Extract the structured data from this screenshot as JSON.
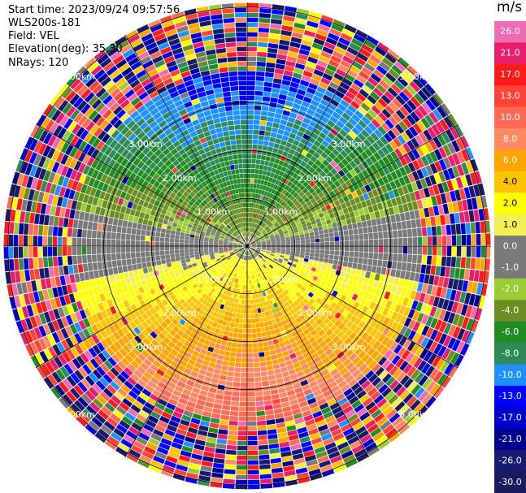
{
  "header": {
    "start_time": "Start time: 2023/09/24 09:57:56",
    "site": "WLS200s-181",
    "field": "Field: VEL",
    "elevation": "Elevation(deg): 35.30",
    "nrays": "NRays: 120"
  },
  "chart_data": {
    "type": "ppi-polar",
    "field": "VEL",
    "units": "m/s",
    "nrays": 120,
    "range_rings_km": [
      1,
      2,
      3,
      5
    ],
    "ring_labels": [
      "1.00km",
      "2.00km",
      "3.00km",
      "5.00km"
    ],
    "max_range_km": 5.1,
    "colorbar": {
      "label": "m/s",
      "ticks": [
        "26.0",
        "21.0",
        "17.0",
        "13.0",
        "10.0",
        "8.0",
        "6.0",
        "4.0",
        "2.0",
        "1.0",
        "0.0",
        "-1.0",
        "-2.0",
        "-4.0",
        "-6.0",
        "-8.0",
        "-10.0",
        "-13.0",
        "-17.0",
        "-21.0",
        "-26.0",
        "-30.0"
      ],
      "colors": [
        "#f06bb4",
        "#e81e6a",
        "#ff1a1a",
        "#ff4436",
        "#ff6a55",
        "#ff8a62",
        "#ffa400",
        "#ffc400",
        "#ffff00",
        "#f0f052",
        "#7a7a7a",
        "#7a7a7a",
        "#9acd32",
        "#6b8e23",
        "#228b22",
        "#2e8b57",
        "#1e90ff",
        "#0000ff",
        "#0000cd",
        "#00008b",
        "#191970",
        "#1a1a5e"
      ]
    }
  }
}
